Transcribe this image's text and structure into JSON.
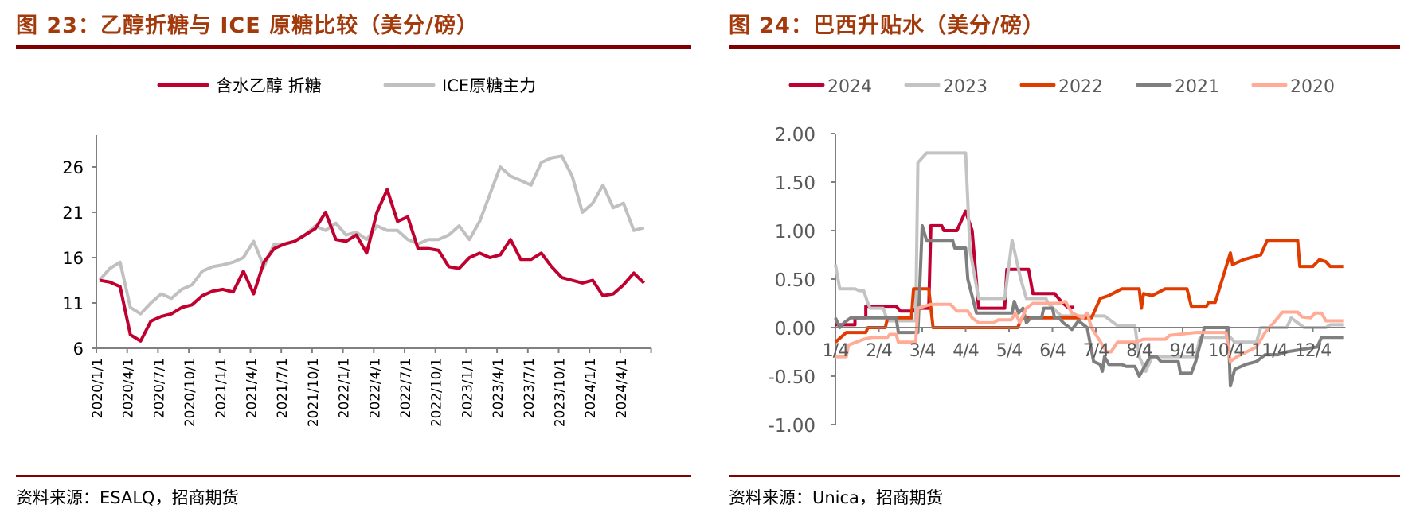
{
  "left": {
    "title": "图 23：乙醇折糖与 ICE 原糖比较（美分/磅）",
    "source": "资料来源：ESALQ，招商期货"
  },
  "right": {
    "title": "图 24：巴西升贴水（美分/磅）",
    "source": "资料来源：Unica，招商期货"
  },
  "chart_data": [
    {
      "type": "line",
      "title": "乙醇折糖与 ICE 原糖比较（美分/磅）",
      "xlabel": "",
      "ylabel": "",
      "x_start": "2020/1",
      "x_step": "month",
      "ylim": [
        6,
        30
      ],
      "yticks": [
        "6",
        "11",
        "16",
        "21",
        "26"
      ],
      "ytick_values": [
        6,
        11,
        16,
        21,
        26
      ],
      "xticks": [
        "2020/1/1",
        "2020/4/1",
        "2020/7/1",
        "2020/10/1",
        "2021/1/1",
        "2021/4/1",
        "2021/7/1",
        "2021/10/1",
        "2022/1/1",
        "2022/4/1",
        "2022/7/1",
        "2022/10/1",
        "2023/1/1",
        "2023/4/1",
        "2023/7/1",
        "2023/10/1",
        "2024/1/1",
        "2024/4/1"
      ],
      "legend_position": "top-center",
      "series": [
        {
          "name": "含水乙醇 折糖",
          "color": "#c0002f",
          "values": [
            13.5,
            13.3,
            12.8,
            7.5,
            6.8,
            9.0,
            9.5,
            9.8,
            10.5,
            10.8,
            11.8,
            12.3,
            12.5,
            12.2,
            14.5,
            12.0,
            15.5,
            17.0,
            17.5,
            17.8,
            18.5,
            19.2,
            21.0,
            18.0,
            17.8,
            18.5,
            16.5,
            21.0,
            23.5,
            20.0,
            20.5,
            17.0,
            17.0,
            16.8,
            15.0,
            14.8,
            16.0,
            16.5,
            16.0,
            16.3,
            18.0,
            15.8,
            15.8,
            16.5,
            15.0,
            13.8,
            13.5,
            13.2,
            13.5,
            11.8,
            12.0,
            13.0,
            14.3,
            13.2
          ]
        },
        {
          "name": "ICE原糖主力",
          "color": "#c0c0c0",
          "values": [
            13.5,
            14.8,
            15.5,
            10.5,
            9.8,
            11.0,
            12.0,
            11.5,
            12.5,
            13.0,
            14.5,
            15.0,
            15.2,
            15.5,
            16.0,
            17.8,
            15.0,
            17.5,
            17.5,
            17.8,
            18.5,
            19.5,
            19.0,
            19.8,
            18.5,
            18.8,
            18.0,
            19.5,
            19.0,
            19.0,
            18.0,
            17.5,
            18.0,
            18.0,
            18.5,
            19.5,
            18.0,
            20.0,
            23.0,
            26.0,
            25.0,
            24.5,
            24.0,
            26.5,
            27.0,
            27.2,
            25.0,
            21.0,
            22.0,
            24.0,
            21.5,
            22.0,
            19.0,
            19.3
          ]
        }
      ]
    },
    {
      "type": "line",
      "title": "巴西升贴水（美分/磅）",
      "xlabel": "",
      "ylabel": "",
      "x_unit": "months since 1/4",
      "ylim": [
        -1.0,
        2.0
      ],
      "yticks": [
        "2.00",
        "1.50",
        "1.00",
        "0.50",
        "0.00",
        "-0.50",
        "-1.00"
      ],
      "ytick_values": [
        2.0,
        1.5,
        1.0,
        0.5,
        0.0,
        -0.5,
        -1.0
      ],
      "xticks": [
        "1/4",
        "2/4",
        "3/4",
        "4/4",
        "5/4",
        "6/4",
        "7/4",
        "8/4",
        "9/4",
        "10/4",
        "11/4",
        "12/4"
      ],
      "legend_position": "top-center",
      "series": [
        {
          "name": "2024",
          "color": "#c00033",
          "points": [
            [
              0,
              0.03
            ],
            [
              0.45,
              0.03
            ],
            [
              0.45,
              0.1
            ],
            [
              0.7,
              0.1
            ],
            [
              0.7,
              0.22
            ],
            [
              1.4,
              0.22
            ],
            [
              1.5,
              0.17
            ],
            [
              1.8,
              0.17
            ],
            [
              1.85,
              0.2
            ],
            [
              2.15,
              0.2
            ],
            [
              2.2,
              1.05
            ],
            [
              2.45,
              1.05
            ],
            [
              2.5,
              1.0
            ],
            [
              2.8,
              1.0
            ],
            [
              3.0,
              1.2
            ],
            [
              3.15,
              1.0
            ],
            [
              3.3,
              0.2
            ],
            [
              3.9,
              0.2
            ],
            [
              3.95,
              0.6
            ],
            [
              4.45,
              0.6
            ],
            [
              4.55,
              0.35
            ],
            [
              5.05,
              0.35
            ],
            [
              5.2,
              0.27
            ],
            [
              5.35,
              0.21
            ],
            [
              5.5,
              0.21
            ]
          ]
        },
        {
          "name": "2023",
          "color": "#c3c3c3",
          "points": [
            [
              0,
              0.65
            ],
            [
              0.1,
              0.4
            ],
            [
              0.45,
              0.4
            ],
            [
              0.55,
              0.38
            ],
            [
              0.65,
              0.38
            ],
            [
              0.75,
              0.25
            ],
            [
              0.8,
              0.2
            ],
            [
              1.1,
              0.2
            ],
            [
              1.2,
              0.07
            ],
            [
              1.85,
              0.07
            ],
            [
              1.9,
              1.7
            ],
            [
              2.1,
              1.8
            ],
            [
              3.0,
              1.8
            ],
            [
              3.1,
              0.8
            ],
            [
              3.3,
              0.3
            ],
            [
              3.9,
              0.3
            ],
            [
              4.07,
              0.9
            ],
            [
              4.27,
              0.5
            ],
            [
              4.4,
              0.3
            ],
            [
              4.85,
              0.3
            ],
            [
              4.9,
              0.25
            ],
            [
              5.2,
              0.12
            ],
            [
              6.2,
              0.12
            ],
            [
              6.5,
              0.02
            ],
            [
              6.9,
              0.02
            ],
            [
              7.0,
              -0.3
            ],
            [
              7.15,
              -0.45
            ],
            [
              7.3,
              -0.3
            ],
            [
              8.3,
              -0.3
            ],
            [
              8.4,
              -0.1
            ],
            [
              9.1,
              -0.1
            ],
            [
              9.2,
              -0.15
            ],
            [
              9.7,
              -0.15
            ],
            [
              9.8,
              0.0
            ],
            [
              10.4,
              0.0
            ],
            [
              10.5,
              0.1
            ],
            [
              10.8,
              0.0
            ],
            [
              11.3,
              0.0
            ],
            [
              11.4,
              0.03
            ],
            [
              11.7,
              0.03
            ]
          ]
        },
        {
          "name": "2022",
          "color": "#e03c00",
          "points": [
            [
              0,
              -0.15
            ],
            [
              0.25,
              -0.05
            ],
            [
              0.7,
              -0.05
            ],
            [
              0.75,
              0.0
            ],
            [
              1.15,
              0.0
            ],
            [
              1.2,
              0.1
            ],
            [
              1.75,
              0.1
            ],
            [
              1.8,
              0.4
            ],
            [
              2.15,
              0.4
            ],
            [
              2.25,
              0.0
            ],
            [
              4.2,
              0.0
            ],
            [
              4.3,
              0.1
            ],
            [
              5.9,
              0.1
            ],
            [
              6.1,
              0.3
            ],
            [
              6.3,
              0.33
            ],
            [
              6.6,
              0.4
            ],
            [
              7.0,
              0.4
            ],
            [
              7.05,
              0.2
            ],
            [
              7.1,
              0.35
            ],
            [
              7.3,
              0.33
            ],
            [
              7.6,
              0.4
            ],
            [
              8.1,
              0.4
            ],
            [
              8.2,
              0.22
            ],
            [
              8.55,
              0.22
            ],
            [
              8.6,
              0.26
            ],
            [
              8.75,
              0.26
            ],
            [
              9.1,
              0.77
            ],
            [
              9.15,
              0.65
            ],
            [
              9.4,
              0.7
            ],
            [
              9.8,
              0.75
            ],
            [
              9.95,
              0.9
            ],
            [
              10.65,
              0.9
            ],
            [
              10.7,
              0.63
            ],
            [
              11.0,
              0.63
            ],
            [
              11.15,
              0.7
            ],
            [
              11.3,
              0.68
            ],
            [
              11.4,
              0.63
            ],
            [
              11.7,
              0.63
            ]
          ]
        },
        {
          "name": "2021",
          "color": "#7f7f7f",
          "points": [
            [
              0,
              0.1
            ],
            [
              0.1,
              0.0
            ],
            [
              0.2,
              0.05
            ],
            [
              0.35,
              0.1
            ],
            [
              1.4,
              0.1
            ],
            [
              1.45,
              -0.05
            ],
            [
              1.9,
              -0.05
            ],
            [
              2.0,
              1.05
            ],
            [
              2.1,
              0.9
            ],
            [
              2.7,
              0.9
            ],
            [
              2.75,
              0.82
            ],
            [
              3.0,
              0.82
            ],
            [
              3.05,
              0.5
            ],
            [
              3.25,
              0.15
            ],
            [
              4.07,
              0.15
            ],
            [
              4.12,
              0.27
            ],
            [
              4.22,
              0.15
            ],
            [
              4.32,
              0.2
            ],
            [
              4.4,
              0.05
            ],
            [
              4.5,
              0.1
            ],
            [
              4.75,
              0.1
            ],
            [
              4.8,
              0.2
            ],
            [
              5.0,
              0.2
            ],
            [
              5.05,
              0.1
            ],
            [
              5.15,
              0.1
            ],
            [
              5.25,
              0.05
            ],
            [
              5.45,
              -0.02
            ],
            [
              5.6,
              0.07
            ],
            [
              5.8,
              0.0
            ],
            [
              5.95,
              -0.35
            ],
            [
              6.1,
              -0.38
            ],
            [
              6.15,
              -0.45
            ],
            [
              6.2,
              -0.3
            ],
            [
              6.3,
              -0.38
            ],
            [
              6.6,
              -0.38
            ],
            [
              6.7,
              -0.4
            ],
            [
              6.9,
              -0.4
            ],
            [
              7.0,
              -0.5
            ],
            [
              7.25,
              -0.3
            ],
            [
              7.4,
              -0.3
            ],
            [
              7.5,
              -0.35
            ],
            [
              7.9,
              -0.35
            ],
            [
              7.95,
              -0.47
            ],
            [
              8.2,
              -0.47
            ],
            [
              8.3,
              -0.35
            ],
            [
              8.5,
              0.0
            ],
            [
              9.05,
              0.0
            ],
            [
              9.1,
              -0.6
            ],
            [
              9.2,
              -0.43
            ],
            [
              9.45,
              -0.38
            ],
            [
              9.7,
              -0.35
            ],
            [
              9.9,
              -0.28
            ],
            [
              10.2,
              -0.28
            ],
            [
              10.4,
              -0.25
            ],
            [
              11.1,
              -0.2
            ],
            [
              11.2,
              -0.1
            ],
            [
              11.7,
              -0.1
            ]
          ]
        },
        {
          "name": "2020",
          "color": "#ffab96",
          "points": [
            [
              0,
              -0.3
            ],
            [
              0.25,
              -0.3
            ],
            [
              0.3,
              -0.18
            ],
            [
              0.65,
              -0.12
            ],
            [
              0.85,
              -0.1
            ],
            [
              1.2,
              -0.1
            ],
            [
              1.25,
              -0.07
            ],
            [
              1.4,
              -0.07
            ],
            [
              1.45,
              -0.15
            ],
            [
              1.85,
              -0.15
            ],
            [
              1.9,
              0.2
            ],
            [
              2.2,
              0.24
            ],
            [
              2.65,
              0.24
            ],
            [
              2.8,
              0.17
            ],
            [
              3.05,
              0.17
            ],
            [
              3.15,
              0.1
            ],
            [
              3.3,
              0.05
            ],
            [
              3.65,
              0.05
            ],
            [
              3.75,
              0.08
            ],
            [
              4.05,
              0.08
            ],
            [
              4.15,
              0.15
            ],
            [
              4.25,
              0.05
            ],
            [
              4.4,
              0.2
            ],
            [
              4.55,
              0.25
            ],
            [
              5.15,
              0.25
            ],
            [
              5.3,
              0.27
            ],
            [
              5.45,
              0.15
            ],
            [
              5.7,
              0.1
            ],
            [
              5.8,
              0.15
            ],
            [
              5.9,
              0.0
            ],
            [
              6.25,
              -0.25
            ],
            [
              6.35,
              -0.25
            ],
            [
              6.5,
              -0.15
            ],
            [
              6.9,
              -0.15
            ],
            [
              7.1,
              -0.12
            ],
            [
              7.6,
              -0.12
            ],
            [
              7.7,
              -0.08
            ],
            [
              8.3,
              -0.05
            ],
            [
              9.0,
              -0.05
            ],
            [
              9.1,
              -0.35
            ],
            [
              9.25,
              -0.3
            ],
            [
              9.7,
              -0.2
            ],
            [
              9.9,
              -0.05
            ],
            [
              10.1,
              0.05
            ],
            [
              10.3,
              0.16
            ],
            [
              10.65,
              0.16
            ],
            [
              10.75,
              0.11
            ],
            [
              10.95,
              0.1
            ],
            [
              11.05,
              0.15
            ],
            [
              11.2,
              0.15
            ],
            [
              11.3,
              0.07
            ],
            [
              11.7,
              0.07
            ]
          ]
        }
      ]
    }
  ]
}
